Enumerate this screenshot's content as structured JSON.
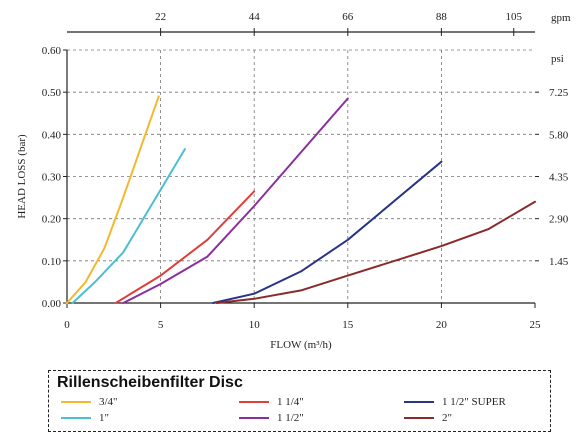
{
  "chart_data": {
    "type": "line",
    "title": "",
    "xlabel": "FLOW (m³/h)",
    "ylabel": "HEAD LOSS (bar)",
    "xlim": [
      0,
      25
    ],
    "ylim": [
      0,
      0.6
    ],
    "x_ticks": [
      0,
      5,
      10,
      15,
      20,
      25
    ],
    "y_ticks": [
      0.0,
      0.1,
      0.2,
      0.3,
      0.4,
      0.5,
      0.6
    ],
    "y_tick_labels": [
      "0.00",
      "0.10",
      "0.20",
      "0.30",
      "0.40",
      "0.50",
      "0.60"
    ],
    "secondary_x": {
      "unit": "gpm",
      "ticks": [
        {
          "value": 22,
          "label": "22"
        },
        {
          "value": 44,
          "label": "44"
        },
        {
          "value": 66,
          "label": "66"
        },
        {
          "value": 88,
          "label": "88"
        },
        {
          "value": 105,
          "label": "105"
        }
      ]
    },
    "secondary_y": {
      "unit": "psi",
      "ticks": [
        {
          "value": 1.45,
          "label": "1.45"
        },
        {
          "value": 2.9,
          "label": "2.90"
        },
        {
          "value": 4.35,
          "label": "4.35"
        },
        {
          "value": 5.8,
          "label": "5.80"
        },
        {
          "value": 7.25,
          "label": "7.25"
        }
      ]
    },
    "series": [
      {
        "name": "3/4\"",
        "color": "#f5b731",
        "points": [
          [
            0,
            0
          ],
          [
            1,
            0.05
          ],
          [
            2,
            0.13
          ],
          [
            3,
            0.25
          ],
          [
            4.9,
            0.49
          ]
        ]
      },
      {
        "name": "1\"",
        "color": "#4bbfcf",
        "points": [
          [
            0.3,
            0
          ],
          [
            1.5,
            0.05
          ],
          [
            3,
            0.12
          ],
          [
            6.3,
            0.365
          ]
        ]
      },
      {
        "name": "1 1/4\"",
        "color": "#e03e3a",
        "points": [
          [
            2.6,
            0
          ],
          [
            5,
            0.065
          ],
          [
            7.5,
            0.15
          ],
          [
            10,
            0.265
          ]
        ]
      },
      {
        "name": "1 1/2\"",
        "color": "#8b2f9e",
        "points": [
          [
            3,
            0
          ],
          [
            5,
            0.045
          ],
          [
            7.5,
            0.11
          ],
          [
            10,
            0.23
          ],
          [
            15,
            0.485
          ]
        ]
      },
      {
        "name": "1 1/2\" SUPER",
        "color": "#2a3486",
        "points": [
          [
            7.8,
            0
          ],
          [
            10,
            0.022
          ],
          [
            12.5,
            0.075
          ],
          [
            15,
            0.15
          ],
          [
            20,
            0.335
          ]
        ]
      },
      {
        "name": "2\"",
        "color": "#8c2a2a",
        "points": [
          [
            8,
            0
          ],
          [
            10,
            0.01
          ],
          [
            12.5,
            0.03
          ],
          [
            15,
            0.065
          ],
          [
            20,
            0.135
          ],
          [
            22.5,
            0.175
          ],
          [
            25,
            0.24
          ]
        ]
      }
    ]
  },
  "legend": {
    "title": "Rillenscheibenfilter Disc",
    "items": [
      "3/4\"",
      "1\"",
      "1 1/4\"",
      "1 1/2\"",
      "1 1/2\" SUPER",
      "2\""
    ]
  }
}
